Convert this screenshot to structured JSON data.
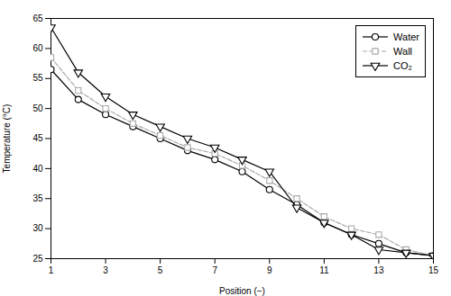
{
  "chart_data": {
    "type": "line",
    "x": [
      1,
      2,
      3,
      4,
      5,
      6,
      7,
      8,
      9,
      10,
      11,
      12,
      13,
      14,
      15
    ],
    "xlabel": "Position (−)",
    "ylabel": "Temperature (°C)",
    "xlim": [
      1,
      15
    ],
    "ylim": [
      25,
      65
    ],
    "xticks": [
      1,
      3,
      5,
      7,
      9,
      11,
      13,
      15
    ],
    "yticks": [
      25,
      30,
      35,
      40,
      45,
      50,
      55,
      60,
      65
    ],
    "grid": false,
    "legend": "upper right",
    "series": [
      {
        "name": "Water",
        "color": "#000000",
        "marker": "circle",
        "line_style": "solid",
        "values": [
          56.5,
          51.5,
          49.0,
          47.0,
          45.0,
          43.0,
          41.5,
          39.5,
          36.5,
          34.0,
          31.0,
          29.0,
          27.5,
          26.0,
          25.5
        ]
      },
      {
        "name": "Wall",
        "color": "#aaaaaa",
        "marker": "square",
        "line_style": "dashed",
        "values": [
          58.5,
          53.0,
          50.0,
          47.5,
          45.5,
          43.5,
          42.5,
          40.5,
          38.0,
          35.0,
          32.0,
          30.0,
          29.0,
          26.5,
          25.5
        ]
      },
      {
        "name": "CO₂",
        "color": "#000000",
        "marker": "triangle-down",
        "line_style": "solid",
        "values": [
          63.5,
          56.0,
          52.0,
          49.0,
          47.0,
          45.0,
          43.5,
          41.5,
          39.5,
          33.5,
          31.0,
          29.0,
          26.5,
          26.0,
          25.5
        ]
      }
    ]
  }
}
